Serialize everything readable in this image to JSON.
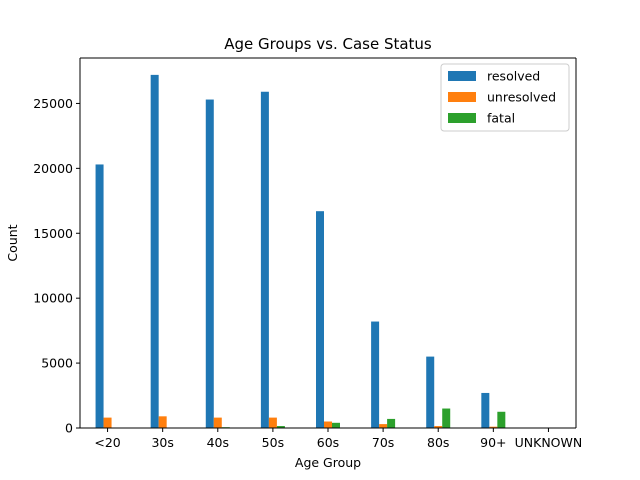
{
  "chart_data": {
    "type": "bar",
    "title": "Age Groups vs. Case Status",
    "xlabel": "Age Group",
    "ylabel": "Count",
    "categories": [
      "<20",
      "30s",
      "40s",
      "50s",
      "60s",
      "70s",
      "80s",
      "90+",
      "UNKNOWN"
    ],
    "series": [
      {
        "name": "resolved",
        "color": "#1f77b4",
        "values": [
          20300,
          27200,
          25300,
          25900,
          16700,
          8200,
          5500,
          2700,
          10
        ]
      },
      {
        "name": "unresolved",
        "color": "#ff7f0e",
        "values": [
          800,
          900,
          800,
          800,
          500,
          300,
          150,
          100,
          0
        ]
      },
      {
        "name": "fatal",
        "color": "#2ca02c",
        "values": [
          10,
          30,
          60,
          150,
          400,
          700,
          1500,
          1250,
          0
        ]
      }
    ],
    "ylim": [
      0,
      28500
    ],
    "yticks": [
      0,
      5000,
      10000,
      15000,
      20000,
      25000
    ],
    "legend_position": "top-right",
    "grid": false
  }
}
